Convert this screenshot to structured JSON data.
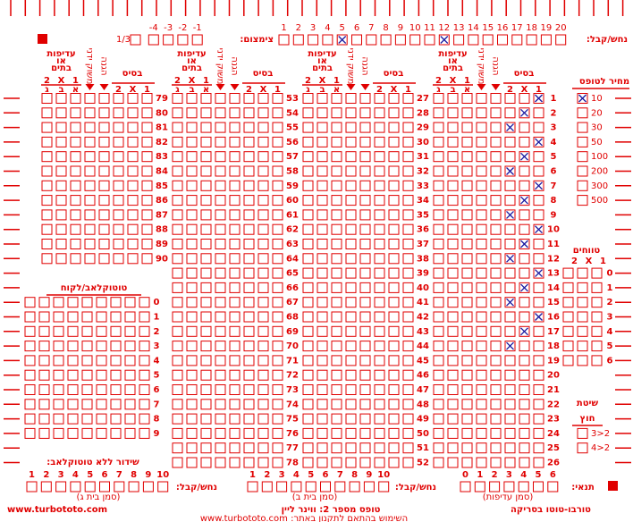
{
  "top": {
    "guess_label": "נחש/קבל:",
    "numbers": [
      1,
      2,
      3,
      4,
      5,
      6,
      7,
      8,
      9,
      10,
      11,
      12,
      13,
      14,
      15,
      16,
      17,
      18,
      19,
      20
    ],
    "checked": [
      5,
      12
    ],
    "reduction_label": "צימצום:",
    "reduction_options": [
      "1/3",
      -4,
      -3,
      -2,
      -1
    ]
  },
  "block_header": {
    "basis": "בסיס",
    "basis_cols": [
      "2",
      "X",
      "1"
    ],
    "priority": [
      "עדיפות",
      "או",
      "בתים"
    ],
    "priority_cols": [
      "2",
      "X",
      "1"
    ],
    "houses": [
      "ג",
      "ב",
      "א"
    ],
    "manual": "משוק ידני",
    "protection": "הגנה"
  },
  "blocks": [
    {
      "rows": [
        1,
        2,
        3,
        4,
        5,
        6,
        7,
        8,
        9,
        10,
        11,
        12,
        13,
        14,
        15,
        16,
        17,
        18,
        19,
        20,
        21,
        22,
        23,
        24,
        25,
        26
      ],
      "marked": [
        "1",
        "X",
        "2",
        "1",
        "X",
        "2",
        "1",
        "X",
        "2",
        "1",
        "X",
        "2",
        "1",
        "X",
        "2",
        "1",
        "X",
        "2",
        null,
        null,
        null,
        null,
        null,
        null,
        null,
        null
      ]
    },
    {
      "rows": [
        27,
        28,
        29,
        30,
        31,
        32,
        33,
        34,
        35,
        36,
        37,
        38,
        39,
        40,
        41,
        42,
        43,
        44,
        45,
        46,
        47,
        48,
        49,
        50,
        51,
        52
      ]
    },
    {
      "rows": [
        53,
        54,
        55,
        56,
        57,
        58,
        59,
        60,
        61,
        62,
        63,
        64,
        65,
        66,
        67,
        68,
        69,
        70,
        71,
        72,
        73,
        74,
        75,
        76,
        77,
        78
      ]
    },
    {
      "rows": [
        79,
        80,
        81,
        82,
        83,
        84,
        85,
        86,
        87,
        88,
        89,
        90
      ]
    }
  ],
  "price": {
    "title": "מחיר לטופס",
    "options": [
      10,
      20,
      30,
      50,
      100,
      200,
      300,
      500
    ],
    "checked": 10
  },
  "ranges": {
    "title": "טווחים",
    "cols": [
      "2",
      "X",
      "1"
    ],
    "rows": [
      0,
      1,
      2,
      3,
      4,
      5,
      6
    ]
  },
  "system": {
    "title": [
      "שיטת",
      "חוץ"
    ],
    "options": [
      "3>2",
      "4>2"
    ]
  },
  "club": {
    "title": "טוטוקלאב/לקוח",
    "rows": [
      0,
      1,
      2,
      3,
      4,
      5,
      6,
      7,
      8,
      9
    ],
    "broadcast_label": "שידור ללא טוטוקלאב:",
    "numbers": [
      1,
      2,
      3,
      4,
      5,
      6,
      7,
      8,
      9,
      10
    ]
  },
  "bottom": {
    "guess_c": {
      "label": "נחש/קבל:",
      "note": "(סמן בית ג)"
    },
    "guess_b": {
      "label": "נחש/קבל:",
      "numbers": [
        1,
        2,
        3,
        4,
        5,
        6,
        7,
        8,
        9,
        10
      ],
      "note": "(סמן בית ב)"
    },
    "condition": {
      "label": "תנאי:",
      "numbers": [
        0,
        1,
        2,
        3,
        4,
        5,
        6
      ],
      "note": "(סמן עדיפות)"
    }
  },
  "footer": {
    "site": "www.turbototo.com",
    "form": "טופס מספר 2: ווינר ליין",
    "brand": "טורבו-טוטו בסריקה",
    "terms": "השימוש בהתאם לתקנון באתר: www.turbototo.com"
  }
}
